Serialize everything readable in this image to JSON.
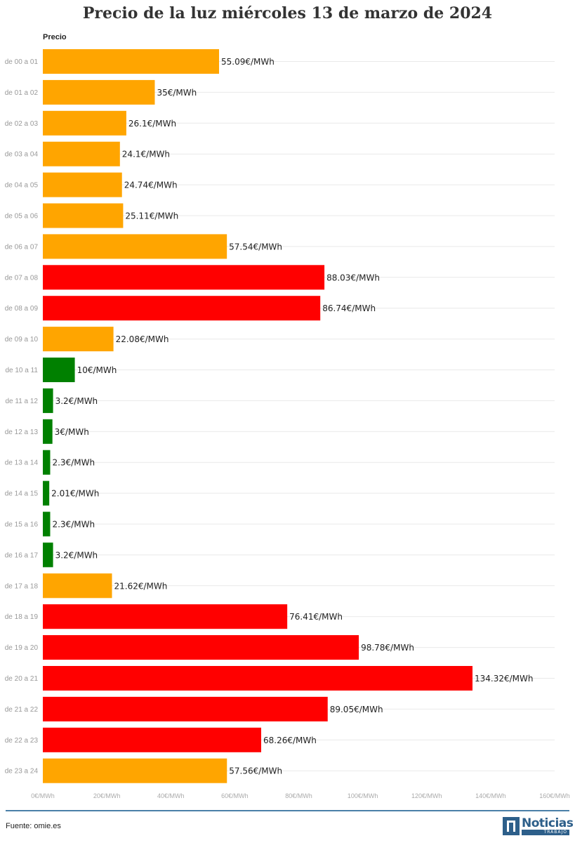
{
  "colors": {
    "orange": "#FFA500",
    "red": "#FF0000",
    "green": "#008000",
    "gridline": "#e9e9e9",
    "divider": "#4a7fa8",
    "brand": "#2d5f8a"
  },
  "footer": {
    "source": "Fuente: omie.es",
    "logo_name": "Noticias",
    "logo_sub": "TRABAJO",
    "logo_icon": "noticias-trabajo-logo-icon"
  },
  "chart_data": {
    "type": "bar",
    "orientation": "horizontal",
    "title": "Precio de la luz miércoles 13 de marzo de 2024",
    "series_header": "Precio",
    "value_suffix": "€/MWh",
    "xlim": [
      0,
      160
    ],
    "xticks": [
      "0€/MWh",
      "20€/MWh",
      "40€/MWh",
      "60€/MWh",
      "80€/MWh",
      "100€/MWh",
      "120€/MWh",
      "140€/MWh",
      "160€/MWh"
    ],
    "xtick_values": [
      0,
      20,
      40,
      60,
      80,
      100,
      120,
      140,
      160
    ],
    "grid": true,
    "categories": [
      "de 00 a 01",
      "de 01 a 02",
      "de 02 a 03",
      "de 03 a 04",
      "de 04 a 05",
      "de 05 a 06",
      "de 06 a 07",
      "de 07 a 08",
      "de 08 a 09",
      "de 09 a 10",
      "de 10 a 11",
      "de 11 a 12",
      "de 12 a 13",
      "de 13 a 14",
      "de 14 a 15",
      "de 15 a 16",
      "de 16 a 17",
      "de 17 a 18",
      "de 18 a 19",
      "de 19 a 20",
      "de 20 a 21",
      "de 21 a 22",
      "de 22 a 23",
      "de 23 a 24"
    ],
    "values": [
      55.09,
      35,
      26.1,
      24.1,
      24.74,
      25.11,
      57.54,
      88.03,
      86.74,
      22.08,
      10,
      3.2,
      3,
      2.3,
      2.01,
      2.3,
      3.2,
      21.62,
      76.41,
      98.78,
      134.32,
      89.05,
      68.26,
      57.56
    ],
    "labels": [
      "55.09€/MWh",
      "35€/MWh",
      "26.1€/MWh",
      "24.1€/MWh",
      "24.74€/MWh",
      "25.11€/MWh",
      "57.54€/MWh",
      "88.03€/MWh",
      "86.74€/MWh",
      "22.08€/MWh",
      "10€/MWh",
      "3.2€/MWh",
      "3€/MWh",
      "2.3€/MWh",
      "2.01€/MWh",
      "2.3€/MWh",
      "3.2€/MWh",
      "21.62€/MWh",
      "76.41€/MWh",
      "98.78€/MWh",
      "134.32€/MWh",
      "89.05€/MWh",
      "68.26€/MWh",
      "57.56€/MWh"
    ],
    "bar_colors": [
      "orange",
      "orange",
      "orange",
      "orange",
      "orange",
      "orange",
      "orange",
      "red",
      "red",
      "orange",
      "green",
      "green",
      "green",
      "green",
      "green",
      "green",
      "green",
      "orange",
      "red",
      "red",
      "red",
      "red",
      "red",
      "orange"
    ]
  }
}
